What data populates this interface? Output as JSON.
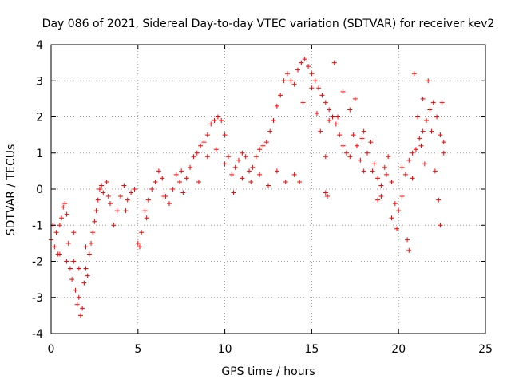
{
  "chart_data": {
    "type": "scatter",
    "title": "Day 086 of 2021, Sidereal Day-to-day VTEC variation (SDTVAR) for receiver kev2",
    "xlabel": "GPS time / hours",
    "ylabel": "SDTVAR / TECUs",
    "xlim": [
      0,
      25
    ],
    "ylim": [
      -4,
      4
    ],
    "xticks": [
      "0",
      "5",
      "10",
      "15",
      "20",
      "25"
    ],
    "yticks": [
      "-4",
      "-3",
      "-2",
      "-1",
      "0",
      "1",
      "2",
      "3",
      "4"
    ],
    "grid": true,
    "marker": "+",
    "color": "#ff0000",
    "series": [
      {
        "points": [
          [
            0.0,
            -1.4
          ],
          [
            0.1,
            -1.0
          ],
          [
            0.2,
            -1.6
          ],
          [
            0.3,
            -1.2
          ],
          [
            0.4,
            -1.8
          ],
          [
            0.5,
            -1.0
          ],
          [
            0.6,
            -0.8
          ],
          [
            0.7,
            -0.5
          ],
          [
            0.8,
            -0.4
          ],
          [
            0.9,
            -0.7
          ],
          [
            1.0,
            -1.5
          ],
          [
            1.1,
            -2.2
          ],
          [
            1.2,
            -2.5
          ],
          [
            1.3,
            -2.0
          ],
          [
            1.4,
            -2.8
          ],
          [
            1.5,
            -3.2
          ],
          [
            1.6,
            -3.0
          ],
          [
            1.7,
            -3.5
          ],
          [
            1.8,
            -3.3
          ],
          [
            1.9,
            -2.6
          ],
          [
            2.0,
            -2.2
          ],
          [
            2.1,
            -2.4
          ],
          [
            2.2,
            -1.8
          ],
          [
            2.3,
            -1.5
          ],
          [
            2.4,
            -1.2
          ],
          [
            2.5,
            -0.9
          ],
          [
            2.6,
            -0.6
          ],
          [
            2.7,
            -0.3
          ],
          [
            2.8,
            0.0
          ],
          [
            2.9,
            0.1
          ],
          [
            3.0,
            -0.1
          ],
          [
            3.2,
            0.2
          ],
          [
            3.4,
            -0.4
          ],
          [
            3.6,
            -1.0
          ],
          [
            3.8,
            -0.6
          ],
          [
            4.0,
            -0.2
          ],
          [
            4.2,
            0.1
          ],
          [
            4.4,
            -0.3
          ],
          [
            4.6,
            -0.1
          ],
          [
            4.8,
            0.0
          ],
          [
            5.0,
            -1.5
          ],
          [
            5.1,
            -1.6
          ],
          [
            5.2,
            -1.2
          ],
          [
            5.4,
            -0.6
          ],
          [
            5.6,
            -0.3
          ],
          [
            5.8,
            0.0
          ],
          [
            6.0,
            0.2
          ],
          [
            6.2,
            0.5
          ],
          [
            6.4,
            0.3
          ],
          [
            6.6,
            -0.2
          ],
          [
            6.8,
            -0.4
          ],
          [
            7.0,
            0.0
          ],
          [
            7.2,
            0.4
          ],
          [
            7.4,
            0.2
          ],
          [
            7.6,
            -0.1
          ],
          [
            7.8,
            0.3
          ],
          [
            8.0,
            0.6
          ],
          [
            8.2,
            0.9
          ],
          [
            8.4,
            1.0
          ],
          [
            8.6,
            1.2
          ],
          [
            8.8,
            1.3
          ],
          [
            9.0,
            1.5
          ],
          [
            9.2,
            1.8
          ],
          [
            9.4,
            1.9
          ],
          [
            9.6,
            2.0
          ],
          [
            9.8,
            1.9
          ],
          [
            10.0,
            1.5
          ],
          [
            10.2,
            0.9
          ],
          [
            10.4,
            0.4
          ],
          [
            10.6,
            0.6
          ],
          [
            10.8,
            0.8
          ],
          [
            11.0,
            1.0
          ],
          [
            11.2,
            0.9
          ],
          [
            11.4,
            0.5
          ],
          [
            11.6,
            0.6
          ],
          [
            11.8,
            0.9
          ],
          [
            12.0,
            1.1
          ],
          [
            12.2,
            1.2
          ],
          [
            12.4,
            1.3
          ],
          [
            12.6,
            1.6
          ],
          [
            12.8,
            1.9
          ],
          [
            13.0,
            2.3
          ],
          [
            13.2,
            2.6
          ],
          [
            13.4,
            3.0
          ],
          [
            13.6,
            3.2
          ],
          [
            13.8,
            3.0
          ],
          [
            14.0,
            2.9
          ],
          [
            14.2,
            3.3
          ],
          [
            14.4,
            3.5
          ],
          [
            14.6,
            3.6
          ],
          [
            14.8,
            3.4
          ],
          [
            15.0,
            3.2
          ],
          [
            15.2,
            3.0
          ],
          [
            15.4,
            2.8
          ],
          [
            15.6,
            2.6
          ],
          [
            15.8,
            2.4
          ],
          [
            16.0,
            2.2
          ],
          [
            16.2,
            2.0
          ],
          [
            16.4,
            1.8
          ],
          [
            16.6,
            1.5
          ],
          [
            16.8,
            1.2
          ],
          [
            17.0,
            1.0
          ],
          [
            17.2,
            0.9
          ],
          [
            17.4,
            1.5
          ],
          [
            17.6,
            1.2
          ],
          [
            17.8,
            0.8
          ],
          [
            18.0,
            0.5
          ],
          [
            18.2,
            1.0
          ],
          [
            18.4,
            1.3
          ],
          [
            18.6,
            0.7
          ],
          [
            18.8,
            0.3
          ],
          [
            19.0,
            0.1
          ],
          [
            19.2,
            0.6
          ],
          [
            19.4,
            0.9
          ],
          [
            19.6,
            0.2
          ],
          [
            19.8,
            -0.4
          ],
          [
            20.0,
            -0.6
          ],
          [
            20.2,
            -0.2
          ],
          [
            20.4,
            0.4
          ],
          [
            20.6,
            0.8
          ],
          [
            20.8,
            1.0
          ],
          [
            21.0,
            1.1
          ],
          [
            21.2,
            1.4
          ],
          [
            21.4,
            1.6
          ],
          [
            21.6,
            1.9
          ],
          [
            21.8,
            2.2
          ],
          [
            22.0,
            2.4
          ],
          [
            22.2,
            2.0
          ],
          [
            22.4,
            1.5
          ],
          [
            22.6,
            1.0
          ],
          [
            0.5,
            -1.8
          ],
          [
            0.9,
            -2.0
          ],
          [
            1.3,
            -1.2
          ],
          [
            1.6,
            -2.2
          ],
          [
            2.0,
            -1.6
          ],
          [
            3.3,
            -0.2
          ],
          [
            4.3,
            -0.6
          ],
          [
            5.5,
            -0.8
          ],
          [
            6.5,
            -0.2
          ],
          [
            7.5,
            0.5
          ],
          [
            8.5,
            0.2
          ],
          [
            9.0,
            0.9
          ],
          [
            9.5,
            1.1
          ],
          [
            10.0,
            0.7
          ],
          [
            10.5,
            -0.1
          ],
          [
            11.0,
            0.3
          ],
          [
            11.5,
            0.2
          ],
          [
            12.0,
            0.4
          ],
          [
            12.5,
            0.1
          ],
          [
            13.0,
            0.5
          ],
          [
            13.5,
            0.2
          ],
          [
            14.0,
            0.4
          ],
          [
            14.3,
            0.2
          ],
          [
            14.5,
            2.4
          ],
          [
            15.0,
            2.8
          ],
          [
            15.3,
            2.1
          ],
          [
            15.5,
            1.6
          ],
          [
            15.8,
            0.9
          ],
          [
            16.0,
            1.9
          ],
          [
            16.3,
            3.5
          ],
          [
            16.5,
            2.0
          ],
          [
            17.2,
            2.2
          ],
          [
            17.5,
            2.5
          ],
          [
            18.0,
            1.6
          ],
          [
            18.5,
            0.5
          ],
          [
            19.0,
            -0.2
          ],
          [
            19.3,
            0.4
          ],
          [
            19.6,
            -0.8
          ],
          [
            19.9,
            -1.1
          ],
          [
            20.2,
            0.6
          ],
          [
            20.5,
            -1.4
          ],
          [
            20.6,
            -1.7
          ],
          [
            20.8,
            0.3
          ],
          [
            21.1,
            2.0
          ],
          [
            21.3,
            1.2
          ],
          [
            21.5,
            0.7
          ],
          [
            21.7,
            3.0
          ],
          [
            21.9,
            1.6
          ],
          [
            22.1,
            0.5
          ],
          [
            22.3,
            -0.3
          ],
          [
            22.4,
            -1.0
          ],
          [
            22.5,
            2.4
          ],
          [
            22.6,
            1.3
          ],
          [
            20.9,
            3.2
          ],
          [
            21.4,
            2.5
          ],
          [
            15.8,
            -0.1
          ],
          [
            15.9,
            -0.2
          ],
          [
            16.8,
            2.7
          ],
          [
            17.9,
            1.4
          ],
          [
            18.8,
            -0.3
          ]
        ]
      }
    ]
  }
}
